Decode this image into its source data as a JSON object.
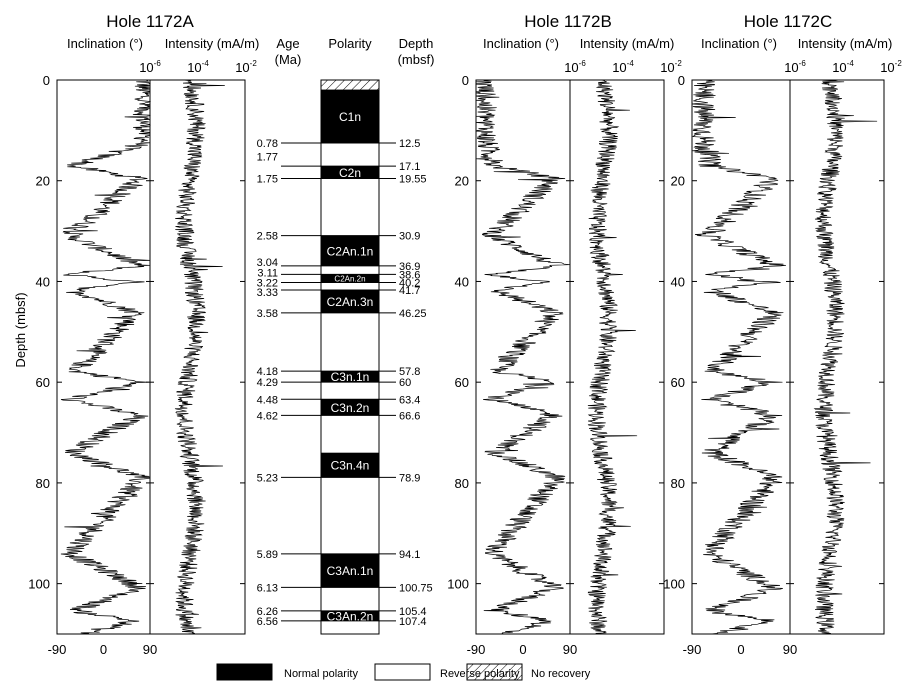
{
  "chart_data": {
    "type": "line",
    "depth_axis": {
      "label": "Depth (mbsf)",
      "ylim": [
        0,
        110
      ],
      "ticks": [
        0,
        20,
        40,
        60,
        80,
        100
      ]
    },
    "inclination_ticks": [
      "-90",
      "0",
      "90"
    ],
    "intensity_ticks": {
      "base": "10",
      "exps": [
        "-6",
        "-4",
        "-2"
      ]
    },
    "panels": [
      {
        "title": "Hole 1172A",
        "inc_label": "Inclination (°)",
        "int_label": "Intensity (mA/m)"
      },
      {
        "title": "Hole 1172B",
        "inc_label": "Inclination (°)",
        "int_label": "Intensity (mA/m)"
      },
      {
        "title": "Hole 1172C",
        "inc_label": "Inclination (°)",
        "int_label": "Intensity (mA/m)"
      }
    ],
    "inclination_profiles": [
      {
        "hole": "1172A",
        "depths": [
          0,
          12.5,
          17.1,
          19.55,
          30.9,
          36.9,
          38.6,
          40.2,
          41.7,
          46.25,
          57.8,
          60,
          63.4,
          66.6,
          74,
          78.9,
          94.1,
          100.75,
          105.4,
          107.4,
          110
        ],
        "values": [
          78,
          80,
          -60,
          70,
          -65,
          72,
          -70,
          68,
          -60,
          65,
          -55,
          70,
          -65,
          68,
          -60,
          72,
          -62,
          70,
          -55,
          60,
          -40
        ]
      },
      {
        "hole": "1172B",
        "depths": [
          0,
          12.5,
          17.1,
          19.55,
          30.9,
          36.9,
          38.6,
          40.2,
          41.7,
          46.25,
          57.8,
          60,
          63.4,
          66.6,
          74,
          78.9,
          94.1,
          100.75,
          105.4,
          107.4,
          110
        ],
        "values": [
          -75,
          -70,
          -55,
          60,
          -60,
          65,
          -65,
          55,
          -55,
          60,
          -50,
          55,
          -60,
          60,
          -55,
          65,
          -60,
          60,
          -55,
          55,
          -40
        ]
      },
      {
        "hole": "1172C",
        "depths": [
          0,
          12.5,
          17.1,
          19.55,
          30.9,
          36.9,
          38.6,
          40.2,
          41.7,
          46.25,
          57.8,
          60,
          63.4,
          66.6,
          74,
          78.9,
          94.1,
          100.75,
          105.4,
          107.4,
          110
        ],
        "values": [
          -70,
          -68,
          -55,
          60,
          -62,
          65,
          -60,
          58,
          -55,
          60,
          -52,
          58,
          -58,
          60,
          -55,
          62,
          -58,
          60,
          -55,
          55,
          -45
        ]
      }
    ],
    "intensity_profiles": [
      {
        "hole": "1172A",
        "log10_center": -4.3
      },
      {
        "hole": "1172B",
        "log10_center": -4.6
      },
      {
        "hole": "1172C",
        "log10_center": -4.3
      }
    ],
    "polarity": {
      "header": {
        "age": "Age",
        "age_unit": "(Ma)",
        "polarity": "Polarity",
        "depth": "Depth",
        "depth_unit": "(mbsf)"
      },
      "no_recovery": [
        0,
        2
      ],
      "chrons": [
        {
          "name": "C1n",
          "top": 2,
          "base": 12.5
        },
        {
          "name": "C2n",
          "top": 17.1,
          "base": 19.55
        },
        {
          "name": "C2An.1n",
          "top": 30.9,
          "base": 36.9
        },
        {
          "name": "C2An.2n",
          "top": 38.6,
          "base": 40.2
        },
        {
          "name": "C2An.3n",
          "top": 41.7,
          "base": 46.25
        },
        {
          "name": "C3n.1n",
          "top": 57.8,
          "base": 60
        },
        {
          "name": "C3n.2n",
          "top": 63.4,
          "base": 66.6
        },
        {
          "name": "C3n.4n",
          "top": 74,
          "base": 78.9
        },
        {
          "name": "C3An.1n",
          "top": 94.1,
          "base": 100.75
        },
        {
          "name": "C3An.2n",
          "top": 105.4,
          "base": 107.4
        }
      ],
      "ages": [
        {
          "label": "0.78",
          "depth": 12.5
        },
        {
          "label": "1.77",
          "depth": 15.2
        },
        {
          "label": "1.75",
          "depth": 19.55
        },
        {
          "label": "2.58",
          "depth": 30.9
        },
        {
          "label": "3.04",
          "depth": 36.1
        },
        {
          "label": "3.11",
          "depth": 38.2
        },
        {
          "label": "3.22",
          "depth": 40.2
        },
        {
          "label": "3.33",
          "depth": 42.1
        },
        {
          "label": "3.58",
          "depth": 46.25
        },
        {
          "label": "4.18",
          "depth": 57.8
        },
        {
          "label": "4.29",
          "depth": 60
        },
        {
          "label": "4.48",
          "depth": 63.4
        },
        {
          "label": "4.62",
          "depth": 66.6
        },
        {
          "label": "5.23",
          "depth": 78.9
        },
        {
          "label": "5.89",
          "depth": 94.1
        },
        {
          "label": "6.13",
          "depth": 100.75
        },
        {
          "label": "6.26",
          "depth": 105.4
        },
        {
          "label": "6.56",
          "depth": 107.4
        }
      ],
      "depths": [
        {
          "label": "12.5",
          "depth": 12.5
        },
        {
          "label": "17.1",
          "depth": 17.1
        },
        {
          "label": "19.55",
          "depth": 19.55
        },
        {
          "label": "30.9",
          "depth": 30.9
        },
        {
          "label": "36.9",
          "depth": 36.9
        },
        {
          "label": "38.6",
          "depth": 38.6
        },
        {
          "label": "40.2",
          "depth": 40.2
        },
        {
          "label": "41.7",
          "depth": 41.7
        },
        {
          "label": "46.25",
          "depth": 46.25
        },
        {
          "label": "57.8",
          "depth": 57.8
        },
        {
          "label": "60",
          "depth": 60
        },
        {
          "label": "63.4",
          "depth": 63.4
        },
        {
          "label": "66.6",
          "depth": 66.6
        },
        {
          "label": "78.9",
          "depth": 78.9
        },
        {
          "label": "94.1",
          "depth": 94.1
        },
        {
          "label": "100.75",
          "depth": 100.75
        },
        {
          "label": "105.4",
          "depth": 105.4
        },
        {
          "label": "107.4",
          "depth": 107.4
        }
      ]
    },
    "legend": [
      {
        "label": "Normal polarity",
        "style": "black"
      },
      {
        "label": "Reverse polarity",
        "style": "white"
      },
      {
        "label": "No recovery",
        "style": "hatch"
      }
    ]
  }
}
